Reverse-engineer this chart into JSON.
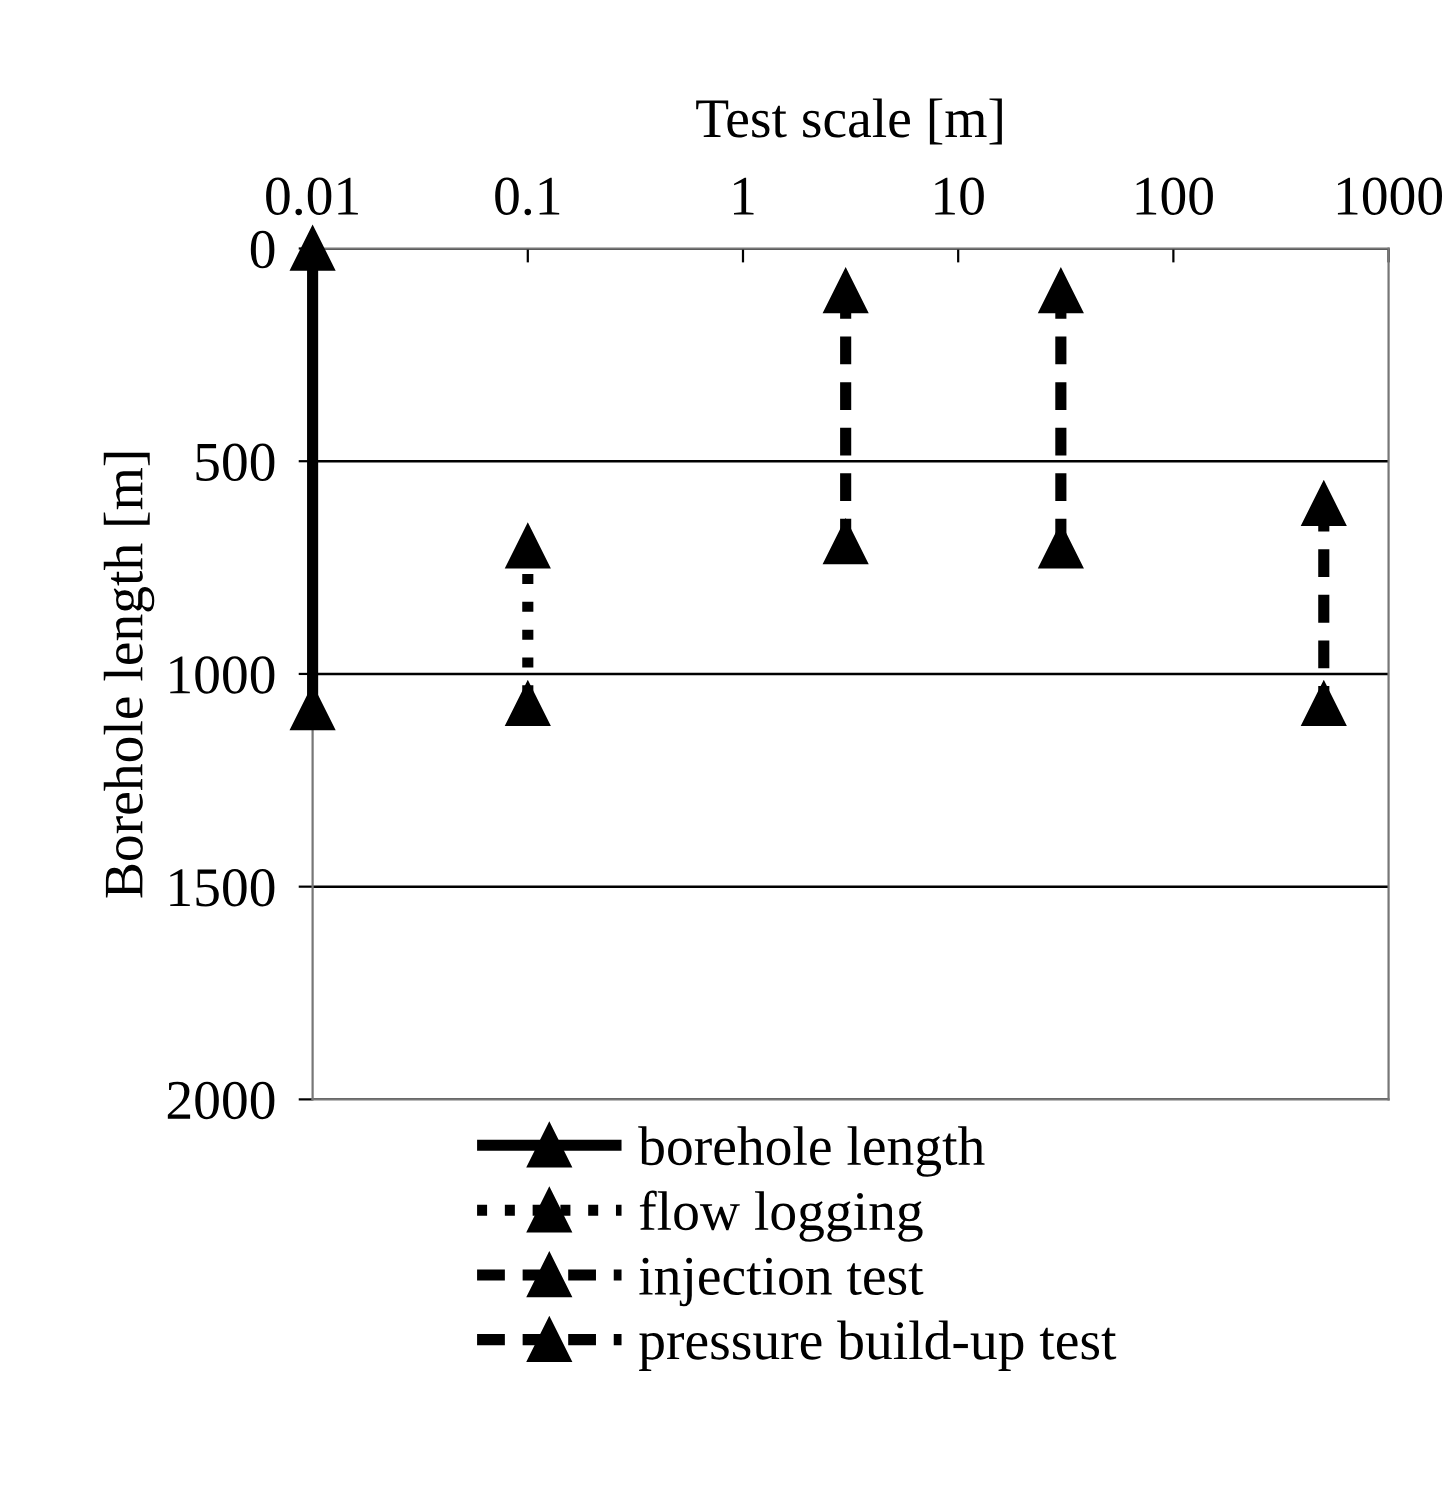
{
  "chart_data": {
    "type": "line",
    "xlabel": "Test scale [m]",
    "ylabel": "Borehole length [m]",
    "log": "x",
    "xlim": [
      0.01,
      1000
    ],
    "xticks": [
      0.01,
      0.1,
      1,
      10,
      100,
      1000
    ],
    "ylim": [
      2000,
      0
    ],
    "yticks": [
      0,
      500,
      1000,
      1500,
      2000
    ],
    "grid": "y",
    "legend": "bottom",
    "marker": "triangle",
    "series": [
      {
        "name": "borehole length",
        "color": "#000000",
        "line_style": "solid",
        "x": [
          0.01,
          0.01
        ],
        "values": [
          0,
          1080
        ]
      },
      {
        "name": "flow logging",
        "color": "#000000",
        "line_style": "dotted",
        "x": [
          0.1,
          0.1
        ],
        "values": [
          700,
          1070
        ]
      },
      {
        "name": "injection test",
        "color": "#000000",
        "line_style": "dashed",
        "x": [
          3,
          3,
          null,
          30,
          30
        ],
        "values": [
          100,
          690,
          null,
          100,
          700
        ]
      },
      {
        "name": "pressure build-up test",
        "color": "#000000",
        "line_style": "dashed",
        "x": [
          500,
          500
        ],
        "values": [
          600,
          1070
        ]
      }
    ]
  }
}
